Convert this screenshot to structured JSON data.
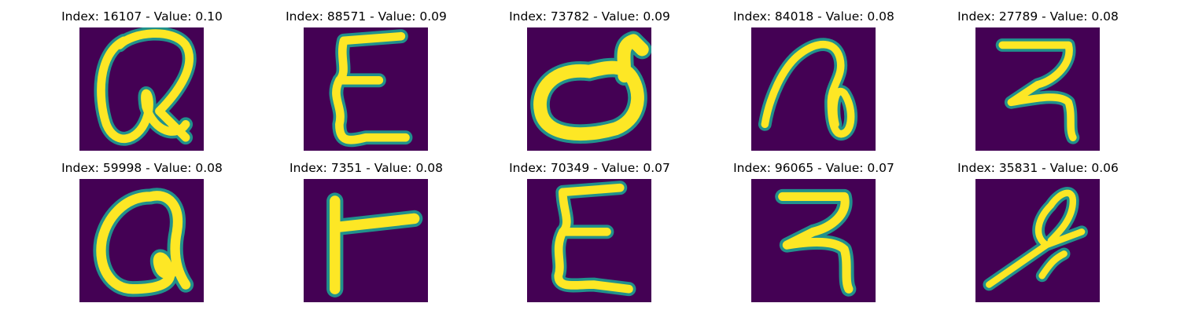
{
  "figure": {
    "panels": [
      {
        "index": "16107",
        "value": "0.10",
        "title": "Index: 16107 - Value: 0.10",
        "glyph": "handwritten-a-loop"
      },
      {
        "index": "88571",
        "value": "0.09",
        "title": "Index: 88571 - Value: 0.09",
        "glyph": "handwritten-epsilon"
      },
      {
        "index": "73782",
        "value": "0.09",
        "title": "Index: 73782 - Value: 0.09",
        "glyph": "handwritten-d-bowl"
      },
      {
        "index": "84018",
        "value": "0.08",
        "title": "Index: 84018 - Value: 0.08",
        "glyph": "handwritten-n-loop"
      },
      {
        "index": "27789",
        "value": "0.08",
        "title": "Index: 27789 - Value: 0.08",
        "glyph": "handwritten-z-hook"
      },
      {
        "index": "59998",
        "value": "0.08",
        "title": "Index: 59998 - Value: 0.08",
        "glyph": "handwritten-a-loop"
      },
      {
        "index": "7351",
        "value": "0.08",
        "title": "Index: 7351 - Value: 0.08",
        "glyph": "handwritten-t-rotated"
      },
      {
        "index": "70349",
        "value": "0.07",
        "title": "Index: 70349 - Value: 0.07",
        "glyph": "handwritten-epsilon"
      },
      {
        "index": "96065",
        "value": "0.07",
        "title": "Index: 96065 - Value: 0.07",
        "glyph": "handwritten-z-hook"
      },
      {
        "index": "35831",
        "value": "0.06",
        "title": "Index: 35831 - Value: 0.06",
        "glyph": "handwritten-slanted-stroke"
      }
    ],
    "colors": {
      "background": "#440154",
      "stroke_edge": "#21918c",
      "stroke_core": "#fde725"
    }
  }
}
